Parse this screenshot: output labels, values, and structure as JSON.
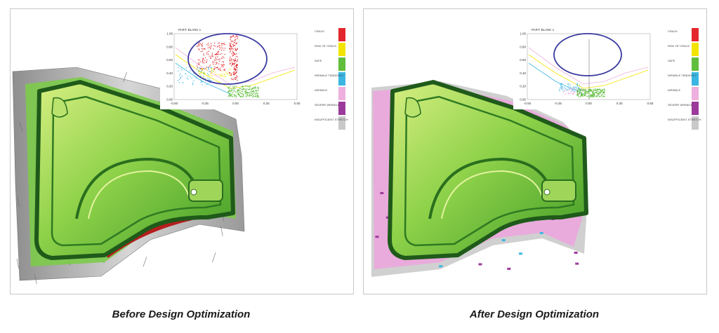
{
  "panels": [
    {
      "caption": "Before Design Optimization",
      "inset": {
        "title": "PART: BLANK 1",
        "yticks": [
          "1.00",
          "0.80",
          "0.60",
          "0.40",
          "0.20",
          "0.00"
        ],
        "xticks": [
          "-0.50",
          "-0.25",
          "0.00",
          "0.25",
          "0.50"
        ]
      },
      "legend": [
        {
          "label": "CRACK",
          "color": "#e2262b"
        },
        {
          "label": "RISK OF CRACK",
          "color": "#f2e400"
        },
        {
          "label": "SAFE",
          "color": "#5fbe3c"
        },
        {
          "label": "WRINKLE TENDENCY",
          "color": "#3bb6e2"
        },
        {
          "label": "WRINKLE",
          "color": "#eeb0de"
        },
        {
          "label": "SEVERE WRINKLE",
          "color": "#9c3a9c"
        },
        {
          "label": "INSUFFICIENT STRETCH",
          "color": "#c9c9c9"
        }
      ]
    },
    {
      "caption": "After Design Optimization",
      "inset": {
        "title": "PART: BLANK 1",
        "yticks": [
          "1.00",
          "0.80",
          "0.60",
          "0.40",
          "0.20",
          "0.00"
        ],
        "xticks": [
          "-0.50",
          "-0.25",
          "0.00",
          "0.25",
          "0.50"
        ]
      },
      "legend": [
        {
          "label": "CRACK",
          "color": "#e2262b"
        },
        {
          "label": "RISK OF CRACK",
          "color": "#f2e400"
        },
        {
          "label": "SAFE",
          "color": "#5fbe3c"
        },
        {
          "label": "WRINKLE TENDENCY",
          "color": "#3bb6e2"
        },
        {
          "label": "WRINKLE",
          "color": "#eeb0de"
        },
        {
          "label": "SEVERE WRINKLE",
          "color": "#9c3a9c"
        },
        {
          "label": "INSUFFICIENT STRETCH",
          "color": "#c9c9c9"
        }
      ]
    }
  ]
}
